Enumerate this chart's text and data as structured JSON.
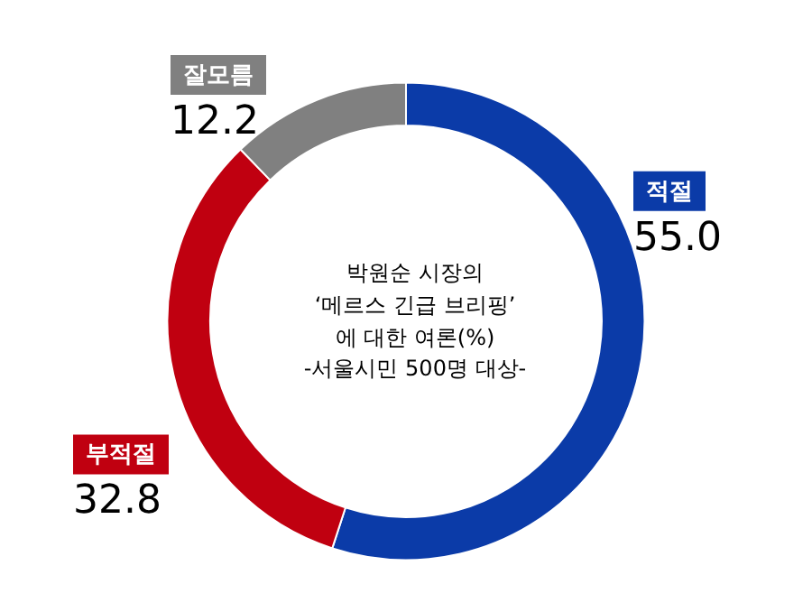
{
  "chart_data": {
    "type": "donut",
    "title": "박원순 시장의\n‘메르스 긴급 브리핑’\n에 대한 여론(%)",
    "subtitle": "-서울시민 500명 대상-",
    "categories": [
      "적절",
      "부적절",
      "잘모름"
    ],
    "values": [
      55.0,
      32.8,
      12.2
    ],
    "colors": [
      "#0b3ba8",
      "#c00010",
      "#808080"
    ],
    "value_labels": [
      "55.0",
      "32.8",
      "12.2"
    ],
    "legend": false
  }
}
